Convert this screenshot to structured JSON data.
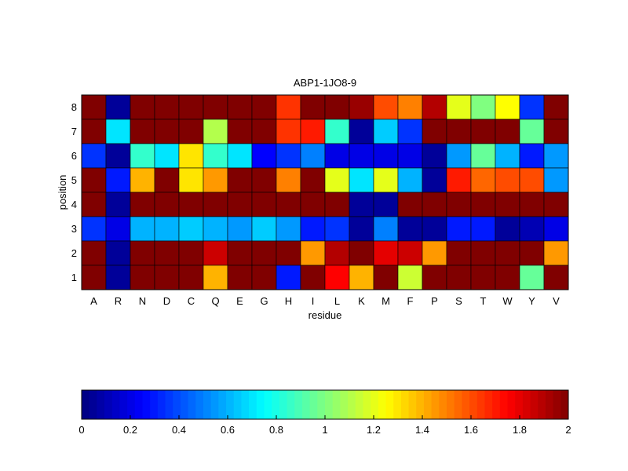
{
  "chart_data": {
    "type": "heatmap",
    "title": "ABP1-1JO8-9",
    "xlabel": "residue",
    "ylabel": "position",
    "x_categories": [
      "A",
      "R",
      "N",
      "D",
      "C",
      "Q",
      "E",
      "G",
      "H",
      "I",
      "L",
      "K",
      "M",
      "F",
      "P",
      "S",
      "T",
      "W",
      "Y",
      "V"
    ],
    "y_categories": [
      "1",
      "2",
      "3",
      "4",
      "5",
      "6",
      "7",
      "8"
    ],
    "colormap": "jet",
    "clim": [
      0,
      2
    ],
    "colorbar": {
      "orientation": "horizontal",
      "placement": "bottom",
      "ticks": [
        0,
        0.2,
        0.4,
        0.6,
        0.8,
        1,
        1.2,
        1.4,
        1.6,
        1.8,
        2
      ],
      "tick_labels": [
        "0",
        "0.2",
        "0.4",
        "0.6",
        "0.8",
        "1",
        "1.2",
        "1.4",
        "1.6",
        "1.8",
        "2"
      ]
    },
    "rows": [
      {
        "position": "8",
        "values": [
          2,
          0.05,
          2,
          2,
          2,
          2,
          2,
          2,
          1.65,
          2,
          2,
          1.95,
          1.6,
          1.5,
          1.9,
          1.2,
          1.0,
          1.25,
          0.35,
          2
        ]
      },
      {
        "position": "7",
        "values": [
          2,
          0.7,
          2,
          2,
          2,
          1.1,
          2,
          2,
          1.65,
          1.7,
          0.85,
          0.05,
          0.65,
          0.35,
          2,
          2,
          2,
          2,
          0.95,
          2
        ]
      },
      {
        "position": "6",
        "values": [
          0.35,
          0.05,
          0.85,
          0.7,
          1.3,
          0.85,
          0.7,
          0.25,
          0.35,
          0.5,
          0.2,
          0.2,
          0.2,
          0.2,
          0.05,
          0.55,
          0.95,
          0.6,
          0.3,
          0.55
        ]
      },
      {
        "position": "5",
        "values": [
          2,
          0.3,
          1.4,
          2,
          1.3,
          1.45,
          2,
          2,
          1.5,
          2,
          1.2,
          0.7,
          1.2,
          0.6,
          0.05,
          1.7,
          1.55,
          1.6,
          1.6,
          0.55
        ]
      },
      {
        "position": "4",
        "values": [
          2,
          0.05,
          2,
          2,
          2,
          2,
          2,
          2,
          2,
          2,
          2,
          0.05,
          0.05,
          2,
          2,
          2,
          2,
          2,
          2,
          2
        ]
      },
      {
        "position": "3",
        "values": [
          0.35,
          0.2,
          0.6,
          0.6,
          0.65,
          0.6,
          0.55,
          0.65,
          0.55,
          0.3,
          0.35,
          0.05,
          0.5,
          0.05,
          0.05,
          0.3,
          0.3,
          0.05,
          0.1,
          0.2
        ]
      },
      {
        "position": "2",
        "values": [
          2,
          0.05,
          2,
          2,
          2,
          1.85,
          2,
          2,
          2,
          1.45,
          1.9,
          2,
          1.8,
          1.85,
          1.45,
          2,
          2,
          2,
          2,
          1.45
        ]
      },
      {
        "position": "1",
        "values": [
          2,
          0.05,
          2,
          2,
          2,
          1.4,
          2,
          2,
          0.3,
          2,
          1.75,
          1.4,
          2,
          1.15,
          2,
          2,
          2,
          2,
          0.95,
          2
        ]
      }
    ]
  }
}
